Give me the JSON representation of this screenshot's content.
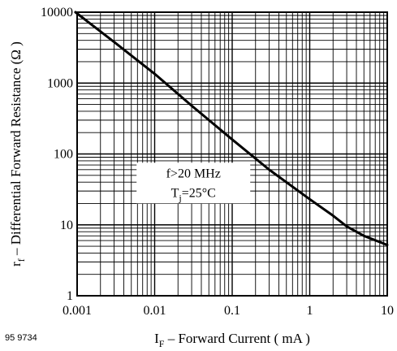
{
  "chart_data": {
    "type": "line",
    "xscale": "log",
    "yscale": "log",
    "xlim": [
      0.001,
      10
    ],
    "ylim": [
      1,
      10000
    ],
    "grid": true,
    "xticks": [
      "0.001",
      "0.01",
      "0.1",
      "1",
      "10"
    ],
    "yticks": [
      "1",
      "10",
      "100",
      "1000",
      "10000"
    ],
    "xlabel": {
      "main": "I",
      "sub": "F",
      "rest": " – Forward Current ( mA )"
    },
    "ylabel": {
      "main": "r",
      "sub": "f",
      "rest": " – Differential Forward Resistance (Ω )"
    },
    "annotation": {
      "line1": "f>20 MHz",
      "line2_main": "T",
      "line2_sub": "j",
      "line2_rest": "=25°C"
    },
    "figure_id": "95 9734",
    "series": [
      {
        "x": [
          0.00095,
          0.003,
          0.01,
          0.03,
          0.1,
          0.3,
          1,
          2,
          3,
          5,
          10
        ],
        "y": [
          10000,
          3800,
          1350,
          480,
          160,
          60,
          23,
          13.5,
          9.5,
          7,
          5.2
        ]
      }
    ]
  }
}
